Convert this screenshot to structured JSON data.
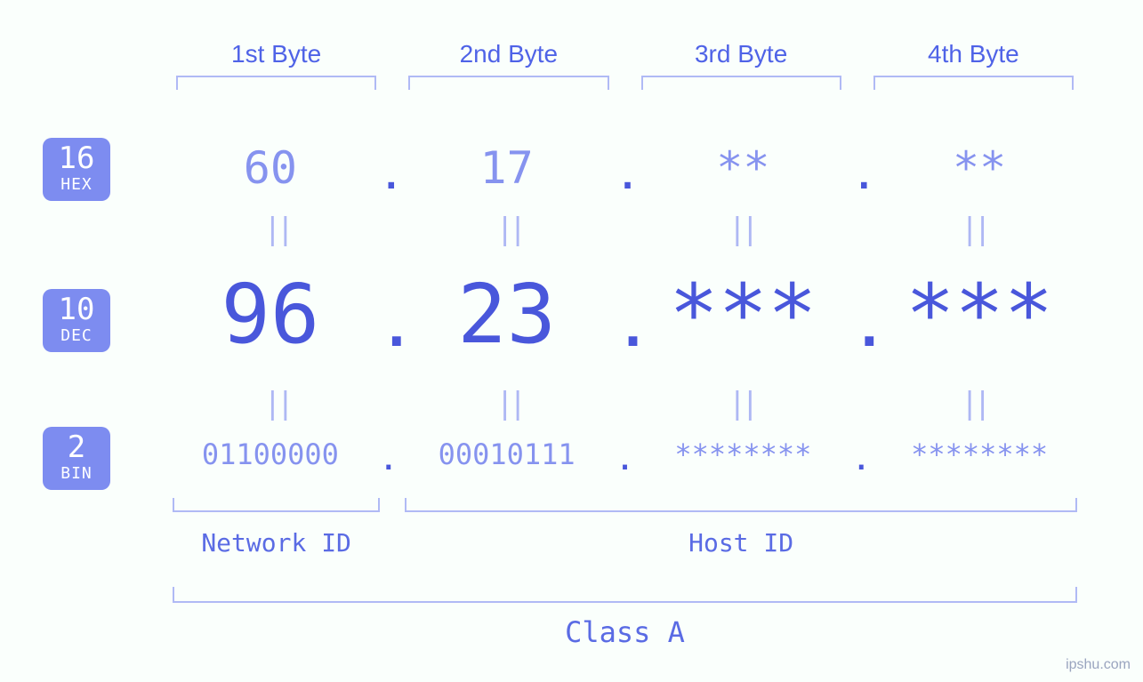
{
  "colors": {
    "background": "#fafffc",
    "primary": "#4957db",
    "soft": "#8693ef",
    "bracket": "#b0baf5",
    "badge_bg": "#7d8cf0",
    "badge_text": "#ffffff",
    "equals": "#aeb8f4",
    "label_text": "#5a6be4"
  },
  "typography": {
    "mono_family": "Consolas, Menlo, Monaco, monospace",
    "byte_label_fontsize": 28,
    "hex_fontsize": 50,
    "dec_fontsize": 92,
    "bin_fontsize": 32,
    "equals_fontsize": 34,
    "bottom_label_fontsize": 28,
    "class_label_fontsize": 32,
    "badge_num_fontsize": 34,
    "badge_txt_fontsize": 18
  },
  "byte_labels": [
    "1st Byte",
    "2nd Byte",
    "3rd Byte",
    "4th Byte"
  ],
  "bases": {
    "hex": {
      "num": "16",
      "txt": "HEX"
    },
    "dec": {
      "num": "10",
      "txt": "DEC"
    },
    "bin": {
      "num": "2",
      "txt": "BIN"
    }
  },
  "values": {
    "hex": [
      "60",
      "17",
      "**",
      "**"
    ],
    "dec": [
      "96",
      "23",
      "***",
      "***"
    ],
    "bin": [
      "01100000",
      "00010111",
      "********",
      "********"
    ]
  },
  "dot": ".",
  "equals": "||",
  "bottom_labels": {
    "network": "Network ID",
    "host": "Host ID"
  },
  "class_label": "Class A",
  "watermark": "ipshu.com"
}
